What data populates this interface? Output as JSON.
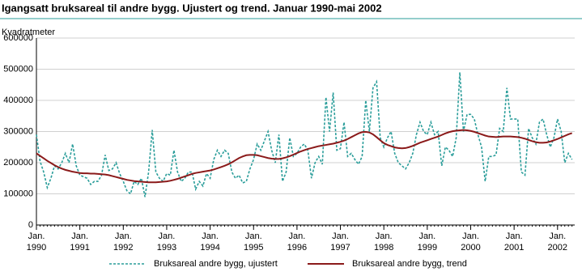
{
  "chart_data": {
    "type": "line",
    "title": "Igangsatt bruksareal til andre bygg. Ujustert og trend. Januar 1990-mai 2002",
    "y_label": "Kvadratmeter",
    "x": [
      "1990-01",
      "1990-02",
      "1990-03",
      "1990-04",
      "1990-05",
      "1990-06",
      "1990-07",
      "1990-08",
      "1990-09",
      "1990-10",
      "1990-11",
      "1990-12",
      "1991-01",
      "1991-02",
      "1991-03",
      "1991-04",
      "1991-05",
      "1991-06",
      "1991-07",
      "1991-08",
      "1991-09",
      "1991-10",
      "1991-11",
      "1991-12",
      "1992-01",
      "1992-02",
      "1992-03",
      "1992-04",
      "1992-05",
      "1992-06",
      "1992-07",
      "1992-08",
      "1992-09",
      "1992-10",
      "1992-11",
      "1992-12",
      "1993-01",
      "1993-02",
      "1993-03",
      "1993-04",
      "1993-05",
      "1993-06",
      "1993-07",
      "1993-08",
      "1993-09",
      "1993-10",
      "1993-11",
      "1993-12",
      "1994-01",
      "1994-02",
      "1994-03",
      "1994-04",
      "1994-05",
      "1994-06",
      "1994-07",
      "1994-08",
      "1994-09",
      "1994-10",
      "1994-11",
      "1994-12",
      "1995-01",
      "1995-02",
      "1995-03",
      "1995-04",
      "1995-05",
      "1995-06",
      "1995-07",
      "1995-08",
      "1995-09",
      "1995-10",
      "1995-11",
      "1995-12",
      "1996-01",
      "1996-02",
      "1996-03",
      "1996-04",
      "1996-05",
      "1996-06",
      "1996-07",
      "1996-08",
      "1996-09",
      "1996-10",
      "1996-11",
      "1996-12",
      "1997-01",
      "1997-02",
      "1997-03",
      "1997-04",
      "1997-05",
      "1997-06",
      "1997-07",
      "1997-08",
      "1997-09",
      "1997-10",
      "1997-11",
      "1997-12",
      "1998-01",
      "1998-02",
      "1998-03",
      "1998-04",
      "1998-05",
      "1998-06",
      "1998-07",
      "1998-08",
      "1998-09",
      "1998-10",
      "1998-11",
      "1998-12",
      "1999-01",
      "1999-02",
      "1999-03",
      "1999-04",
      "1999-05",
      "1999-06",
      "1999-07",
      "1999-08",
      "1999-09",
      "1999-10",
      "1999-11",
      "1999-12",
      "2000-01",
      "2000-02",
      "2000-03",
      "2000-04",
      "2000-05",
      "2000-06",
      "2000-07",
      "2000-08",
      "2000-09",
      "2000-10",
      "2000-11",
      "2000-12",
      "2001-01",
      "2001-02",
      "2001-03",
      "2001-04",
      "2001-05",
      "2001-06",
      "2001-07",
      "2001-08",
      "2001-09",
      "2001-10",
      "2001-11",
      "2001-12",
      "2002-01",
      "2002-02",
      "2002-03",
      "2002-04",
      "2002-05"
    ],
    "xticks": [
      {
        "value": "1990-01",
        "label": "Jan. 1990"
      },
      {
        "value": "1991-01",
        "label": "Jan. 1991"
      },
      {
        "value": "1992-01",
        "label": "Jan. 1992"
      },
      {
        "value": "1993-01",
        "label": "Jan. 1993"
      },
      {
        "value": "1994-01",
        "label": "Jan. 1994"
      },
      {
        "value": "1995-01",
        "label": "Jan. 1995"
      },
      {
        "value": "1996-01",
        "label": "Jan. 1996"
      },
      {
        "value": "1997-01",
        "label": "Jan. 1997"
      },
      {
        "value": "1998-01",
        "label": "Jan. 1998"
      },
      {
        "value": "1999-01",
        "label": "Jan. 1999"
      },
      {
        "value": "2000-01",
        "label": "Jan. 2000"
      },
      {
        "value": "2001-01",
        "label": "Jan. 2001"
      },
      {
        "value": "2002-01",
        "label": "Jan. 2002"
      }
    ],
    "ylim": [
      0,
      600000
    ],
    "yticks": [
      0,
      100000,
      200000,
      300000,
      400000,
      500000,
      600000
    ],
    "grid": true,
    "series": [
      {
        "name": "Bruksareal andre bygg, ujustert",
        "color": "#2a9d9a",
        "dashed": true,
        "values": [
          290000,
          205000,
          170000,
          120000,
          150000,
          190000,
          180000,
          200000,
          230000,
          200000,
          260000,
          190000,
          160000,
          155000,
          150000,
          130000,
          140000,
          140000,
          160000,
          225000,
          175000,
          180000,
          200000,
          165000,
          140000,
          110000,
          100000,
          140000,
          130000,
          150000,
          90000,
          170000,
          305000,
          170000,
          150000,
          140000,
          165000,
          160000,
          240000,
          170000,
          140000,
          150000,
          170000,
          170000,
          115000,
          140000,
          125000,
          165000,
          150000,
          210000,
          240000,
          220000,
          240000,
          230000,
          170000,
          150000,
          160000,
          135000,
          140000,
          180000,
          210000,
          260000,
          240000,
          270000,
          300000,
          240000,
          200000,
          290000,
          140000,
          170000,
          280000,
          220000,
          230000,
          250000,
          260000,
          240000,
          150000,
          200000,
          220000,
          195000,
          410000,
          300000,
          425000,
          240000,
          245000,
          330000,
          220000,
          230000,
          210000,
          195000,
          220000,
          400000,
          300000,
          440000,
          460000,
          280000,
          250000,
          280000,
          300000,
          230000,
          200000,
          190000,
          180000,
          200000,
          230000,
          290000,
          330000,
          300000,
          290000,
          330000,
          290000,
          300000,
          190000,
          250000,
          240000,
          220000,
          280000,
          490000,
          300000,
          355000,
          355000,
          340000,
          290000,
          250000,
          140000,
          220000,
          220000,
          225000,
          310000,
          300000,
          440000,
          340000,
          340000,
          340000,
          170000,
          160000,
          310000,
          280000,
          260000,
          330000,
          340000,
          290000,
          250000,
          280000,
          340000,
          300000,
          200000,
          230000,
          210000
        ]
      },
      {
        "name": "Bruksareal andre bygg, trend",
        "color": "#8b1a1a",
        "dashed": false,
        "values": [
          230000,
          222000,
          214000,
          206000,
          199000,
          192000,
          186000,
          181000,
          177000,
          174000,
          171000,
          169000,
          167000,
          166000,
          166000,
          165000,
          165000,
          164000,
          163000,
          162000,
          160000,
          157000,
          154000,
          151000,
          148000,
          145000,
          143000,
          141000,
          140000,
          139000,
          138000,
          137000,
          137000,
          137000,
          138000,
          139000,
          140000,
          142000,
          145000,
          148000,
          152000,
          156000,
          160000,
          164000,
          167000,
          169000,
          171000,
          173000,
          175000,
          178000,
          182000,
          186000,
          190000,
          195000,
          201000,
          208000,
          215000,
          220000,
          224000,
          225000,
          225000,
          224000,
          221000,
          218000,
          215000,
          213000,
          212000,
          212000,
          214000,
          217000,
          221000,
          226000,
          231000,
          236000,
          240000,
          244000,
          247000,
          250000,
          253000,
          255000,
          257000,
          259000,
          261000,
          264000,
          267000,
          271000,
          276000,
          282000,
          288000,
          294000,
          298000,
          299000,
          297000,
          291000,
          282000,
          272000,
          263000,
          257000,
          253000,
          249000,
          247000,
          246000,
          247000,
          250000,
          254000,
          259000,
          264000,
          268000,
          272000,
          276000,
          280000,
          284000,
          289000,
          294000,
          298000,
          301000,
          303000,
          304000,
          305000,
          304000,
          302000,
          299000,
          295000,
          291000,
          287000,
          284000,
          283000,
          282000,
          283000,
          284000,
          284000,
          284000,
          283000,
          282000,
          280000,
          277000,
          273000,
          269000,
          266000,
          264000,
          264000,
          265000,
          268000,
          272000,
          276000,
          281000,
          286000,
          291000,
          295000
        ]
      }
    ]
  }
}
